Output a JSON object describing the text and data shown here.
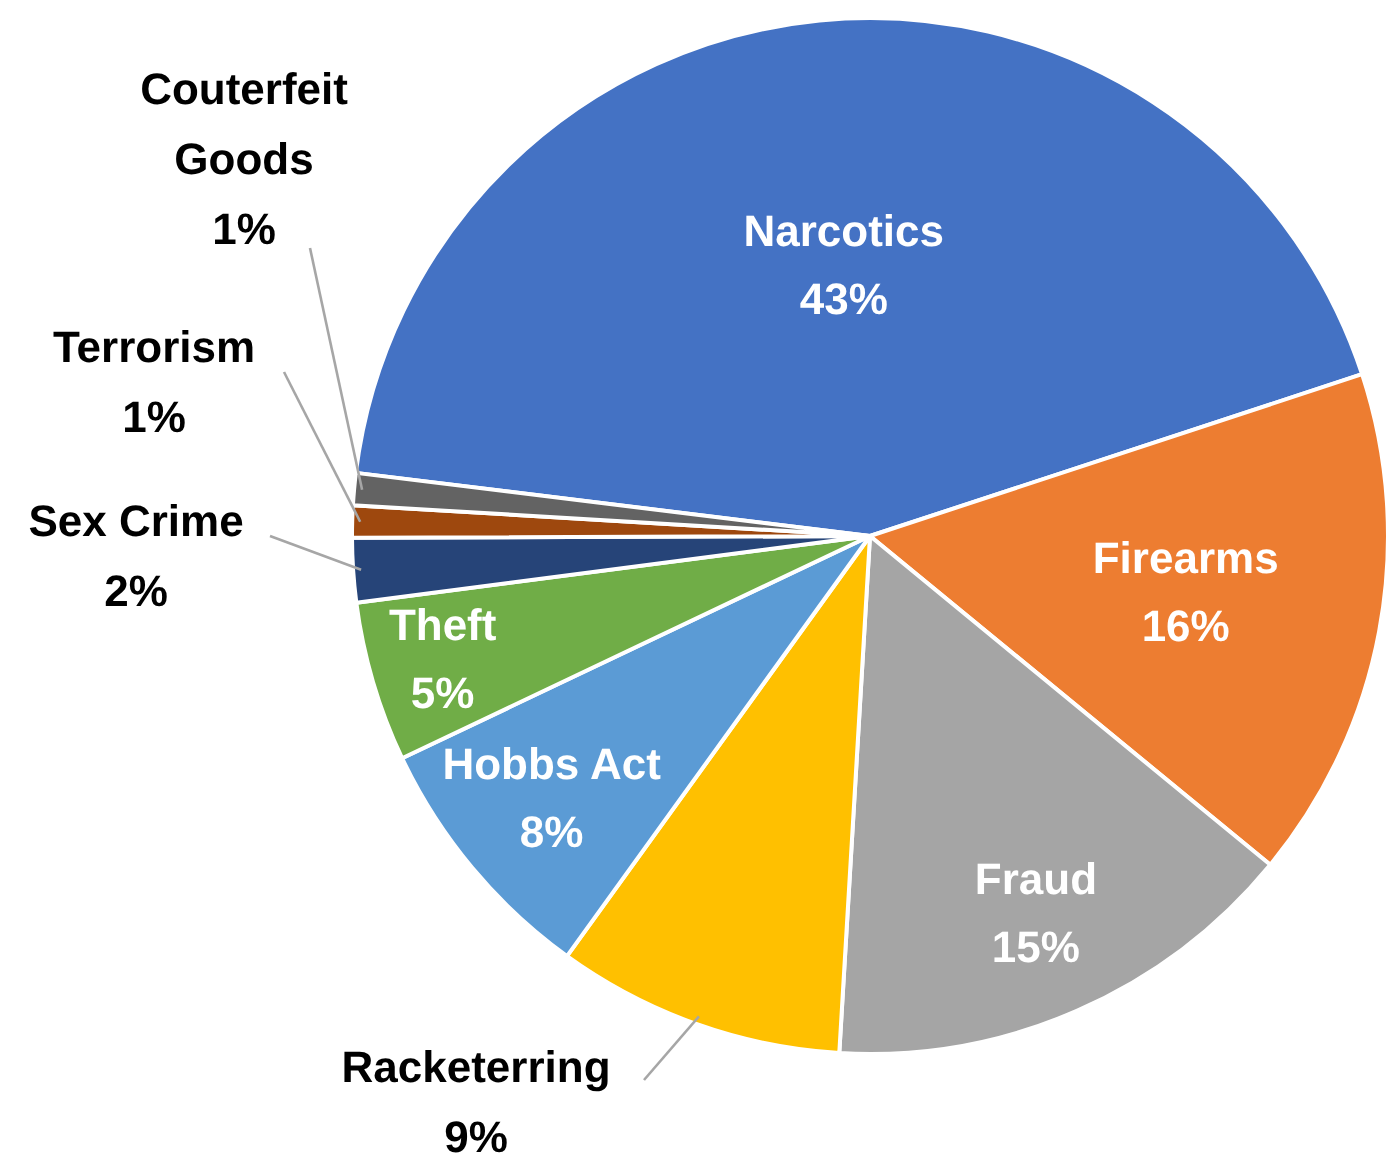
{
  "chart_data": {
    "type": "pie",
    "categories": [
      "Narcotics",
      "Firearms",
      "Fraud",
      "Racketerring",
      "Hobbs Act",
      "Theft",
      "Sex Crime",
      "Terrorism",
      "Couterfeit Goods"
    ],
    "values": [
      43,
      16,
      15,
      9,
      8,
      5,
      2,
      1,
      1
    ],
    "colors": [
      "#4472c4",
      "#ed7d31",
      "#a5a5a5",
      "#ffc000",
      "#5b9bd5",
      "#70ad47",
      "#264478",
      "#9e480e",
      "#636363"
    ],
    "value_labels": [
      "43%",
      "16%",
      "15%",
      "9%",
      "8%",
      "5%",
      "2%",
      "1%",
      "1%"
    ],
    "legend": false
  }
}
